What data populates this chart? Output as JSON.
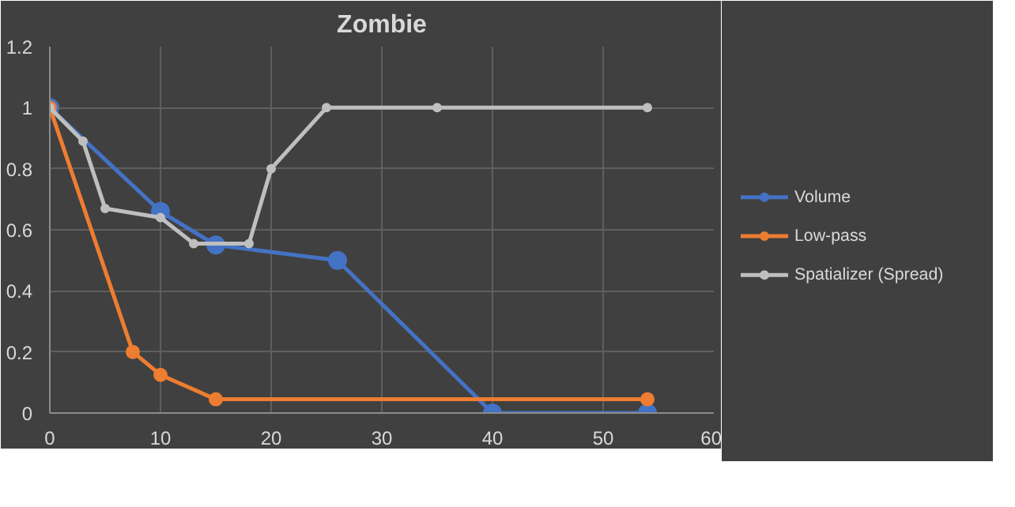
{
  "chart_data": {
    "type": "line",
    "title": "Zombie",
    "xlim": [
      0,
      60
    ],
    "xticks": [
      0,
      10,
      20,
      30,
      40,
      50,
      60
    ],
    "ylim": [
      0,
      1.2
    ],
    "yticks": [
      0,
      0.2,
      0.4,
      0.6,
      0.8,
      1,
      1.2
    ],
    "grid": true,
    "legend": "right",
    "marker": "circle",
    "line_style": "solid",
    "series": [
      {
        "name": "Volume",
        "color": "#4472c4",
        "x": [
          0,
          10,
          15,
          26,
          40,
          54
        ],
        "values": [
          1,
          0.66,
          0.55,
          0.5,
          0,
          0
        ]
      },
      {
        "name": "Low-pass",
        "color": "#ed7d31",
        "x": [
          0,
          7.5,
          10,
          15,
          54
        ],
        "values": [
          1,
          0.2,
          0.125,
          0.045,
          0.045
        ]
      },
      {
        "name": "Spatializer (Spread)",
        "color": "#bfbfbf",
        "x": [
          0,
          3,
          5,
          10,
          13,
          18,
          20,
          25,
          35,
          54
        ],
        "values": [
          1,
          0.89,
          0.67,
          0.64,
          0.555,
          0.555,
          0.8,
          1,
          1,
          1
        ]
      }
    ]
  }
}
